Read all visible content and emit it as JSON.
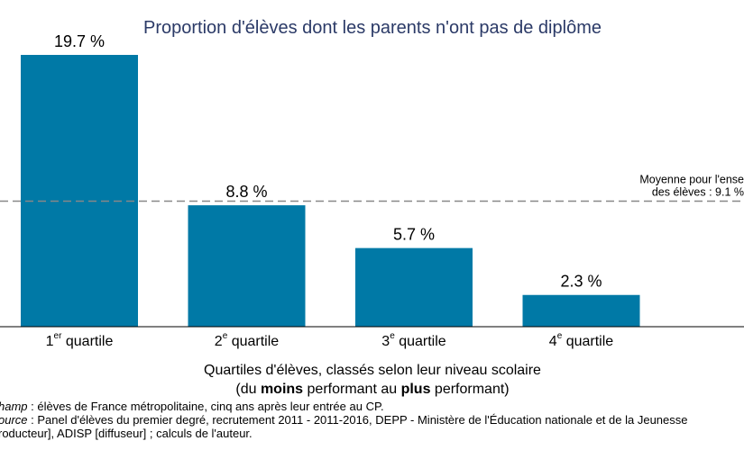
{
  "chart_data": {
    "type": "bar",
    "title": "Proportion d'élèves dont les parents n'ont pas de diplôme",
    "categories": [
      {
        "main": "1",
        "sup": "er",
        "rest": " quartile"
      },
      {
        "main": "2",
        "sup": "e",
        "rest": " quartile"
      },
      {
        "main": "3",
        "sup": "e",
        "rest": " quartile"
      },
      {
        "main": "4",
        "sup": "e",
        "rest": " quartile"
      }
    ],
    "values": [
      19.7,
      8.8,
      5.7,
      2.3
    ],
    "value_labels": [
      "19.7 %",
      "8.8 %",
      "5.7 %",
      "2.3 %"
    ],
    "ylim": [
      0,
      19.7
    ],
    "bar_color": "#0079a6",
    "reference_line": {
      "value": 9.1,
      "style": "dashed",
      "color": "#888888",
      "label_line1": "Moyenne pour l'ense",
      "label_line2": "des élèves : 9.1 %"
    },
    "xlabel_line1": "Quartiles d'élèves, classés selon leur niveau scolaire",
    "xlabel_line2": {
      "pre": "(du ",
      "b1": "moins",
      "mid": " performant au ",
      "b2": "plus",
      "post": " performant)"
    },
    "grid": false,
    "legend": "none"
  },
  "notes": {
    "champ_label": "hamp",
    "champ_text": " : élèves de France métropolitaine, cinq ans après leur entrée au CP.",
    "source_label": "ource",
    "source_text": " : Panel d'élèves du premier degré, recrutement 2011 - 2011-2016, DEPP - Ministère de l'Éducation nationale et de la Jeunesse",
    "source_text2": "roducteur], ADISP [diffuseur] ; calculs de l'auteur."
  }
}
